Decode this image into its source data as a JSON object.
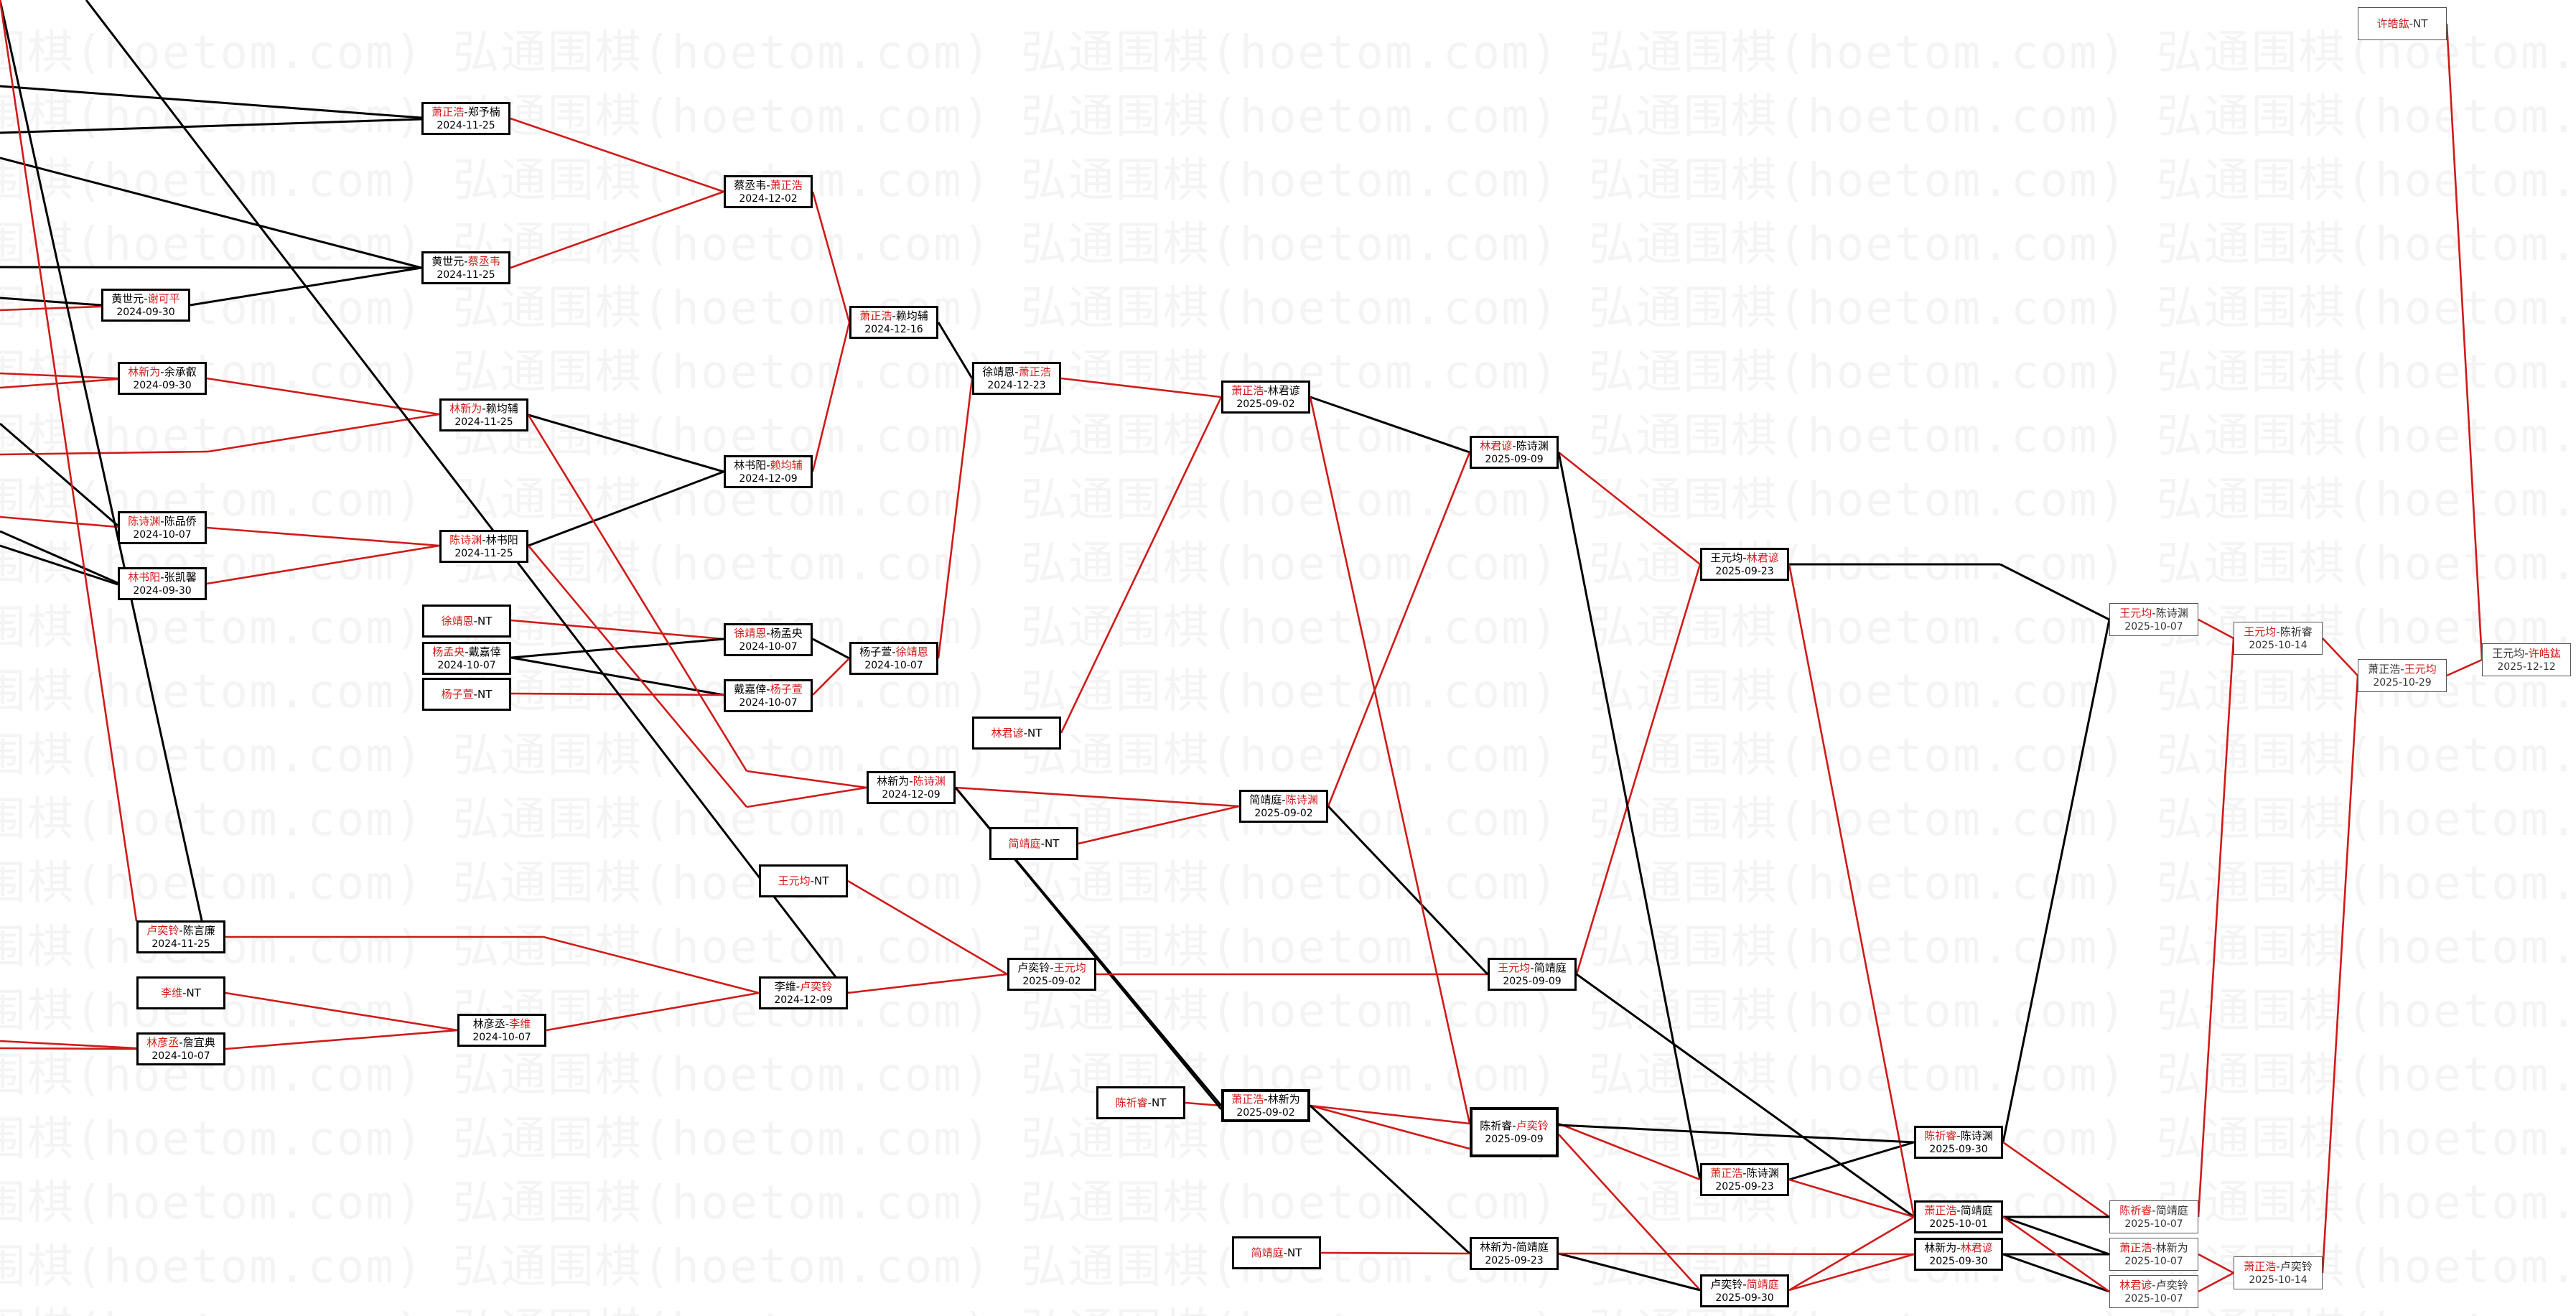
{
  "watermark": {
    "text": "弘通围棋(hoetom.com)"
  },
  "colors": {
    "win": "#d01a1a",
    "line": "#000000"
  },
  "nodes": [
    {
      "id": "n1",
      "p1": "萧正浩",
      "p2": "郑予楠",
      "win": 1,
      "date": "2024-11-25"
    },
    {
      "id": "n2",
      "p1": "黄世元",
      "p2": "蔡丞韦",
      "win": 2,
      "date": "2024-11-25"
    },
    {
      "id": "n3",
      "p1": "黄世元",
      "p2": "谢可平",
      "win": 2,
      "date": "2024-09-30"
    },
    {
      "id": "n4",
      "p1": "林新为",
      "p2": "余承叡",
      "win": 1,
      "date": "2024-09-30"
    },
    {
      "id": "n5",
      "p1": "陈诗渊",
      "p2": "陈品侨",
      "win": 1,
      "date": "2024-10-07"
    },
    {
      "id": "n6",
      "p1": "林书阳",
      "p2": "张凯馨",
      "win": 1,
      "date": "2024-09-30"
    },
    {
      "id": "n7",
      "p1": "蔡丞韦",
      "p2": "萧正浩",
      "win": 2,
      "date": "2024-12-02"
    },
    {
      "id": "n8",
      "p1": "林新为",
      "p2": "赖均辅",
      "win": 1,
      "date": "2024-11-25"
    },
    {
      "id": "n9",
      "p1": "陈诗渊",
      "p2": "林书阳",
      "win": 1,
      "date": "2024-11-25"
    },
    {
      "id": "n10",
      "p1": "徐靖恩",
      "p2": "NT",
      "win": 1,
      "date": ""
    },
    {
      "id": "n11",
      "p1": "杨孟央",
      "p2": "戴嘉倖",
      "win": 1,
      "date": "2024-10-07"
    },
    {
      "id": "n12",
      "p1": "杨子萱",
      "p2": "NT",
      "win": 1,
      "date": ""
    },
    {
      "id": "n13",
      "p1": "萧正浩",
      "p2": "赖均辅",
      "win": 1,
      "date": "2024-12-16"
    },
    {
      "id": "n14",
      "p1": "林书阳",
      "p2": "赖均辅",
      "win": 2,
      "date": "2024-12-09"
    },
    {
      "id": "n15",
      "p1": "徐靖恩",
      "p2": "杨孟央",
      "win": 1,
      "date": "2024-10-07"
    },
    {
      "id": "n16",
      "p1": "戴嘉倖",
      "p2": "杨子萱",
      "win": 2,
      "date": "2024-10-07"
    },
    {
      "id": "n17",
      "p1": "杨子萱",
      "p2": "徐靖恩",
      "win": 2,
      "date": "2024-10-07"
    },
    {
      "id": "n18",
      "p1": "徐靖恩",
      "p2": "萧正浩",
      "win": 2,
      "date": "2024-12-23"
    },
    {
      "id": "n19",
      "p1": "林君谚",
      "p2": "NT",
      "win": 1,
      "date": ""
    },
    {
      "id": "n20",
      "p1": "萧正浩",
      "p2": "林君谚",
      "win": 1,
      "date": "2025-09-02"
    },
    {
      "id": "n21",
      "p1": "林新为",
      "p2": "陈诗渊",
      "win": 2,
      "date": "2024-12-09"
    },
    {
      "id": "n22",
      "p1": "简靖庭",
      "p2": "NT",
      "win": 1,
      "date": ""
    },
    {
      "id": "n23",
      "p1": "王元均",
      "p2": "NT",
      "win": 1,
      "date": ""
    },
    {
      "id": "n24",
      "p1": "卢奕铃",
      "p2": "陈言廉",
      "win": 1,
      "date": "2024-11-25"
    },
    {
      "id": "n25",
      "p1": "李维",
      "p2": "NT",
      "win": 1,
      "date": ""
    },
    {
      "id": "n26",
      "p1": "林彦丞",
      "p2": "詹宜典",
      "win": 1,
      "date": "2024-10-07"
    },
    {
      "id": "n27",
      "p1": "林彦丞",
      "p2": "李维",
      "win": 2,
      "date": "2024-10-07"
    },
    {
      "id": "n28",
      "p1": "李维",
      "p2": "卢奕铃",
      "win": 2,
      "date": "2024-12-09"
    },
    {
      "id": "n29",
      "p1": "简靖庭",
      "p2": "陈诗渊",
      "win": 2,
      "date": "2025-09-02"
    },
    {
      "id": "n30",
      "p1": "卢奕铃",
      "p2": "王元均",
      "win": 2,
      "date": "2025-09-02"
    },
    {
      "id": "n31",
      "p1": "陈祈睿",
      "p2": "NT",
      "win": 1,
      "date": ""
    },
    {
      "id": "n32",
      "p1": "萧正浩",
      "p2": "林新为",
      "win": 1,
      "date": "2025-09-02"
    },
    {
      "id": "n33",
      "p1": "林君谚",
      "p2": "陈诗渊",
      "win": 1,
      "date": "2025-09-09"
    },
    {
      "id": "n34",
      "p1": "王元均",
      "p2": "简靖庭",
      "win": 1,
      "date": "2025-09-09"
    },
    {
      "id": "n35",
      "p1": "陈祈睿",
      "p2": "卢奕铃",
      "win": 2,
      "date": "2025-09-09"
    },
    {
      "id": "n36",
      "p1": "简靖庭",
      "p2": "NT",
      "win": 1,
      "date": ""
    },
    {
      "id": "n37",
      "p1": "王元均",
      "p2": "林君谚",
      "win": 2,
      "date": "2025-09-23"
    },
    {
      "id": "n38",
      "p1": "萧正浩",
      "p2": "陈诗渊",
      "win": 1,
      "date": "2025-09-23"
    },
    {
      "id": "n39",
      "p1": "林新为",
      "p2": "简靖庭",
      "win": 0,
      "date": "2025-09-23"
    },
    {
      "id": "n40",
      "p1": "卢奕铃",
      "p2": "简靖庭",
      "win": 2,
      "date": "2025-09-30"
    },
    {
      "id": "n41",
      "p1": "陈祈睿",
      "p2": "陈诗渊",
      "win": 1,
      "date": "2025-09-30"
    },
    {
      "id": "n42",
      "p1": "萧正浩",
      "p2": "简靖庭",
      "win": 1,
      "date": "2025-10-01"
    },
    {
      "id": "n43",
      "p1": "林新为",
      "p2": "林君谚",
      "win": 2,
      "date": "2025-09-30"
    },
    {
      "id": "n44",
      "p1": "王元均",
      "p2": "陈诗渊",
      "win": 1,
      "date": "2025-10-07"
    },
    {
      "id": "n45",
      "p1": "陈祈睿",
      "p2": "简靖庭",
      "win": 1,
      "date": "2025-10-07"
    },
    {
      "id": "n46",
      "p1": "萧正浩",
      "p2": "林新为",
      "win": 1,
      "date": "2025-10-07"
    },
    {
      "id": "n47",
      "p1": "林君谚",
      "p2": "卢奕铃",
      "win": 1,
      "date": "2025-10-07"
    },
    {
      "id": "n48",
      "p1": "王元均",
      "p2": "陈祈睿",
      "win": 1,
      "date": "2025-10-14"
    },
    {
      "id": "n49",
      "p1": "萧正浩",
      "p2": "卢奕铃",
      "win": 1,
      "date": "2025-10-14"
    },
    {
      "id": "n50",
      "p1": "萧正浩",
      "p2": "王元均",
      "win": 2,
      "date": "2025-10-29"
    },
    {
      "id": "n51",
      "p1": "许皓鈜",
      "p2": "NT",
      "win": 1,
      "date": ""
    },
    {
      "id": "n52",
      "p1": "王元均",
      "p2": "许皓鈜",
      "win": 2,
      "date": "2025-12-12"
    }
  ]
}
